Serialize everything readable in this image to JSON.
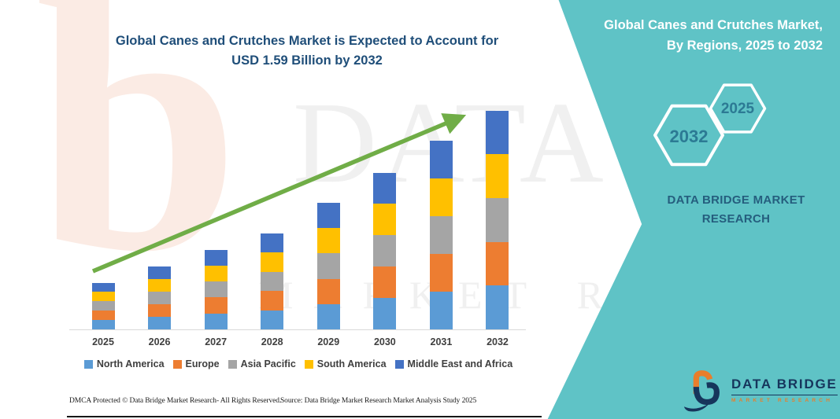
{
  "header": {
    "title_line1": "Global Canes and Crutches Market is Expected to Account for",
    "title_line2": "USD 1.59 Billion by 2032"
  },
  "chart_data": {
    "type": "bar",
    "stacked": true,
    "title": "Global Canes and Crutches Market is Expected to Account for USD 1.59 Billion by 2032",
    "unit": "USD Billion",
    "xlabel": "",
    "ylabel": "",
    "ylim": [
      0,
      1.7
    ],
    "gridlines": false,
    "legend_position": "bottom",
    "annotations": [
      "upward green growth trend arrow from 2025 to 2032"
    ],
    "categories": [
      "2025",
      "2026",
      "2027",
      "2028",
      "2029",
      "2030",
      "2031",
      "2032"
    ],
    "totals": [
      0.34,
      0.46,
      0.58,
      0.7,
      0.92,
      1.14,
      1.37,
      1.59
    ],
    "series": [
      {
        "name": "North America",
        "color": "#5B9BD5",
        "values": [
          0.068,
          0.092,
          0.116,
          0.14,
          0.184,
          0.228,
          0.274,
          0.318
        ]
      },
      {
        "name": "Europe",
        "color": "#ED7D31",
        "values": [
          0.068,
          0.092,
          0.116,
          0.14,
          0.184,
          0.228,
          0.274,
          0.318
        ]
      },
      {
        "name": "Asia Pacific",
        "color": "#A5A5A5",
        "values": [
          0.068,
          0.092,
          0.116,
          0.14,
          0.184,
          0.228,
          0.274,
          0.318
        ]
      },
      {
        "name": "South America",
        "color": "#FFC000",
        "values": [
          0.068,
          0.092,
          0.116,
          0.14,
          0.184,
          0.228,
          0.274,
          0.318
        ]
      },
      {
        "name": "Middle East and Africa",
        "color": "#4472C4",
        "values": [
          0.068,
          0.092,
          0.116,
          0.14,
          0.184,
          0.228,
          0.274,
          0.318
        ]
      }
    ]
  },
  "right_panel": {
    "title_line1": "Global Canes and Crutches Market,",
    "title_line2": "By Regions, 2025 to 2032",
    "hexagon_front_year": "2032",
    "hexagon_back_year": "2025",
    "brand_line1": "DATA BRIDGE MARKET",
    "brand_line2": "RESEARCH",
    "background_color": "#5FC3C6"
  },
  "logo": {
    "name": "DATA BRIDGE",
    "tagline": "MARKET RESEARCH"
  },
  "watermark": {
    "letter_b": "b",
    "primary": "DATA BRIDGE",
    "secondary": "MARKET RESEARCH"
  },
  "footer": {
    "dmca": "DMCA Protected © Data Bridge Market Research-  All Rights Reserved.",
    "source": "Source: Data Bridge Market Research  Market Analysis Study 2025"
  },
  "colors": {
    "accent_teal": "#5FC3C6",
    "title_blue": "#1F4E79",
    "arrow_green": "#70AD47",
    "axis_text": "#3F3F3F"
  }
}
